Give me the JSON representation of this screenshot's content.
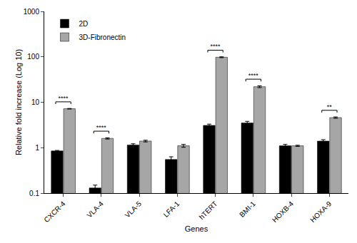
{
  "chart_data": {
    "type": "bar",
    "x_label": "Genes",
    "y_label": "Relative fold increase (Log 10)",
    "categories": [
      "CXCR-4",
      "VLA-4",
      "VLA-5",
      "LFA-1",
      "hTERT",
      "BMI-1",
      "HOXB-4",
      "HOXA-9"
    ],
    "series": [
      {
        "name": "2D",
        "color": "#000000",
        "values": [
          0.85,
          0.13,
          1.15,
          0.55,
          3.1,
          3.5,
          1.1,
          1.4
        ],
        "errors": [
          0.02,
          0.02,
          0.07,
          0.08,
          0.2,
          0.3,
          0.08,
          0.1
        ]
      },
      {
        "name": "3D-Fibronectin",
        "color": "#a6a6a6",
        "values": [
          7.2,
          1.6,
          1.4,
          1.1,
          98,
          22,
          1.1,
          4.6
        ],
        "errors": [
          0.1,
          0.05,
          0.06,
          0.08,
          2,
          1,
          0.03,
          0.15
        ]
      }
    ],
    "annotations": [
      {
        "category": "CXCR-4",
        "text": "****"
      },
      {
        "category": "VLA-4",
        "text": "****"
      },
      {
        "category": "hTERT",
        "text": "****"
      },
      {
        "category": "BMI-1",
        "text": "****"
      },
      {
        "category": "HOXA-9",
        "text": "**"
      }
    ],
    "log": "y",
    "ylim": [
      0.1,
      1000
    ],
    "yticks": [
      0.1,
      1,
      10,
      100,
      1000
    ],
    "legend": "top-left",
    "grid": false
  }
}
